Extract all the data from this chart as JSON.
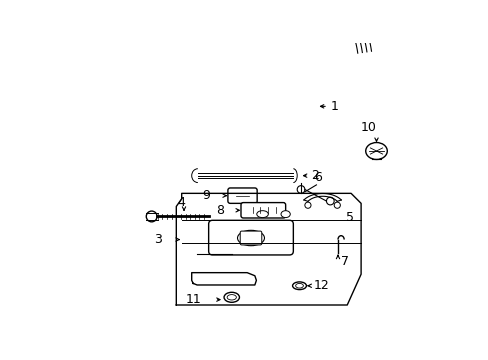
{
  "background_color": "#ffffff",
  "line_color": "#000000",
  "label_color": "#000000",
  "font_size": 9,
  "figsize": [
    4.89,
    3.6
  ],
  "dpi": 100
}
